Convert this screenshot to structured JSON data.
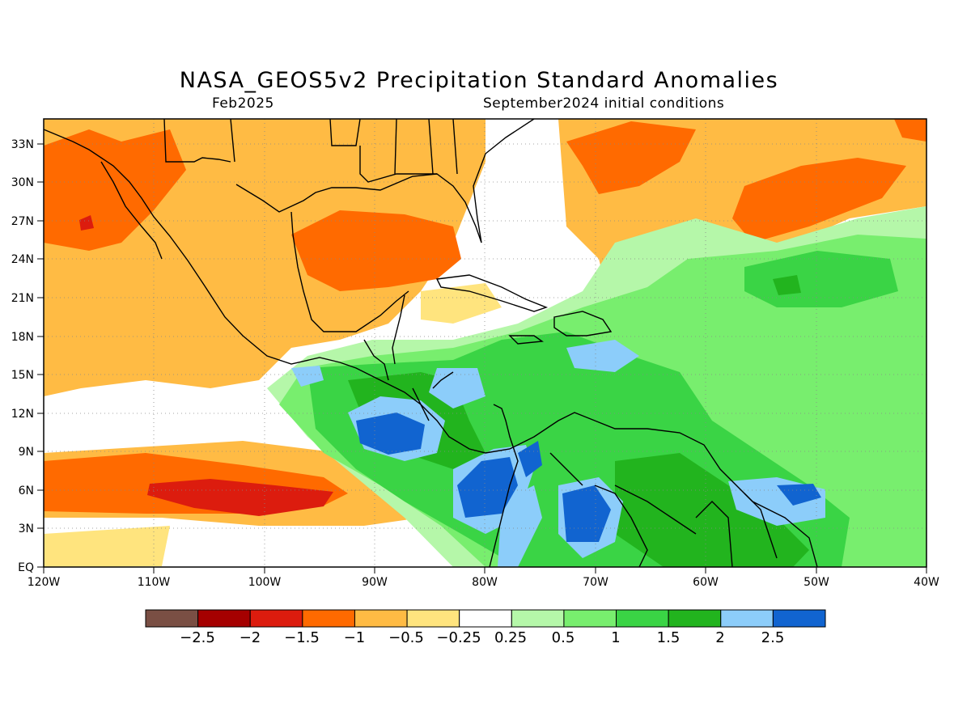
{
  "title": "NASA_GEOS5v2 Precipitation Standard Anomalies",
  "valid_month": "Feb2025",
  "initial_conditions": "September2024 initial conditions",
  "map": {
    "lon_range": [
      -120,
      -40
    ],
    "lat_range": [
      0,
      35
    ],
    "x_ticks": [
      "120W",
      "110W",
      "100W",
      "90W",
      "80W",
      "70W",
      "60W",
      "50W",
      "40W"
    ],
    "y_ticks": [
      "EQ",
      "3N",
      "6N",
      "9N",
      "12N",
      "15N",
      "18N",
      "21N",
      "24N",
      "27N",
      "30N",
      "33N"
    ],
    "grid": true
  },
  "colorbar": {
    "colors": [
      "#7a4f44",
      "#a50000",
      "#dc1c0e",
      "#ff6a00",
      "#ffbb44",
      "#ffe47e",
      "#ffffff",
      "#b5f7a9",
      "#78ee6e",
      "#3ad445",
      "#22b41e",
      "#8ccdfa",
      "#1164d0"
    ],
    "labels": [
      "−2.5",
      "−2",
      "−1.5",
      "−1",
      "−0.5",
      "−0.25",
      "0.25",
      "0.5",
      "1",
      "1.5",
      "2",
      "2.5"
    ]
  }
}
